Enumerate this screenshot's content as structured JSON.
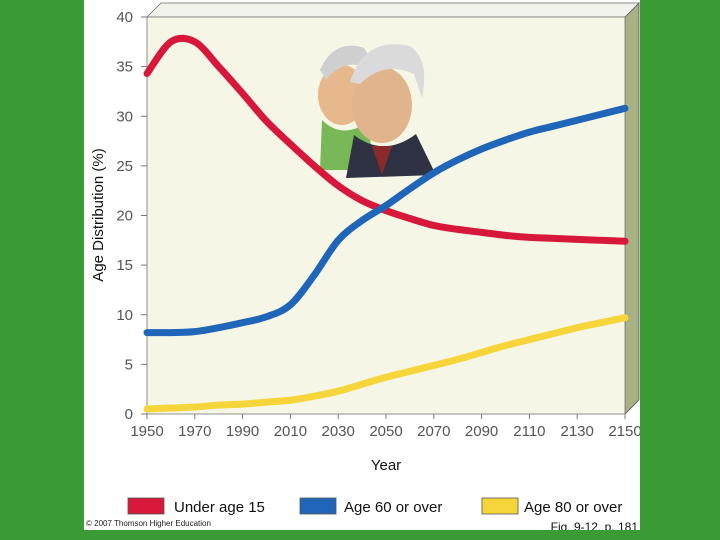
{
  "chart_data": {
    "type": "line",
    "title": "",
    "xlabel": "Year",
    "ylabel": "Age Distribution (%)",
    "x": [
      1950,
      1960,
      1970,
      1980,
      1990,
      2000,
      2010,
      2020,
      2030,
      2040,
      2050,
      2060,
      2070,
      2080,
      2090,
      2100,
      2110,
      2120,
      2130,
      2140,
      2150
    ],
    "xticks": [
      "1950",
      "1970",
      "1990",
      "2010",
      "2030",
      "2050",
      "2070",
      "2090",
      "2110",
      "2130",
      "2150"
    ],
    "yticks": [
      "0",
      "5",
      "10",
      "15",
      "20",
      "25",
      "30",
      "35",
      "40"
    ],
    "xlim": [
      1950,
      2150
    ],
    "ylim": [
      0,
      40
    ],
    "grid": false,
    "legend_position": "bottom",
    "series": [
      {
        "name": "Under age 15",
        "color": "#d8183a",
        "values": [
          34.3,
          37.5,
          37.5,
          35.0,
          32.3,
          29.5,
          27.2,
          25.0,
          23.0,
          21.5,
          20.5,
          19.7,
          19.0,
          18.6,
          18.3,
          18.0,
          17.8,
          17.7,
          17.6,
          17.5,
          17.4
        ]
      },
      {
        "name": "Age 60 or over",
        "color": "#1f66b8",
        "values": [
          8.2,
          8.2,
          8.3,
          8.7,
          9.2,
          9.8,
          11.0,
          14.0,
          17.5,
          19.5,
          21.0,
          22.7,
          24.3,
          25.6,
          26.7,
          27.6,
          28.4,
          29.0,
          29.6,
          30.2,
          30.8
        ]
      },
      {
        "name": "Age 80 or over",
        "color": "#f5d53a",
        "values": [
          0.5,
          0.6,
          0.7,
          0.9,
          1.0,
          1.2,
          1.4,
          1.8,
          2.3,
          3.0,
          3.7,
          4.3,
          4.9,
          5.5,
          6.2,
          6.9,
          7.5,
          8.1,
          8.7,
          9.2,
          9.7
        ]
      }
    ],
    "copyright": "© 2007 Thomson Higher Education",
    "figure_label": "Fig. 9-12, p. 181"
  },
  "illustration": {
    "icon": "elderly-couple-icon",
    "skin": "#e2b48c",
    "hair": "#d9d9d9",
    "jacket_him": "#2e3142",
    "jacket_her": "#7ab85a"
  }
}
